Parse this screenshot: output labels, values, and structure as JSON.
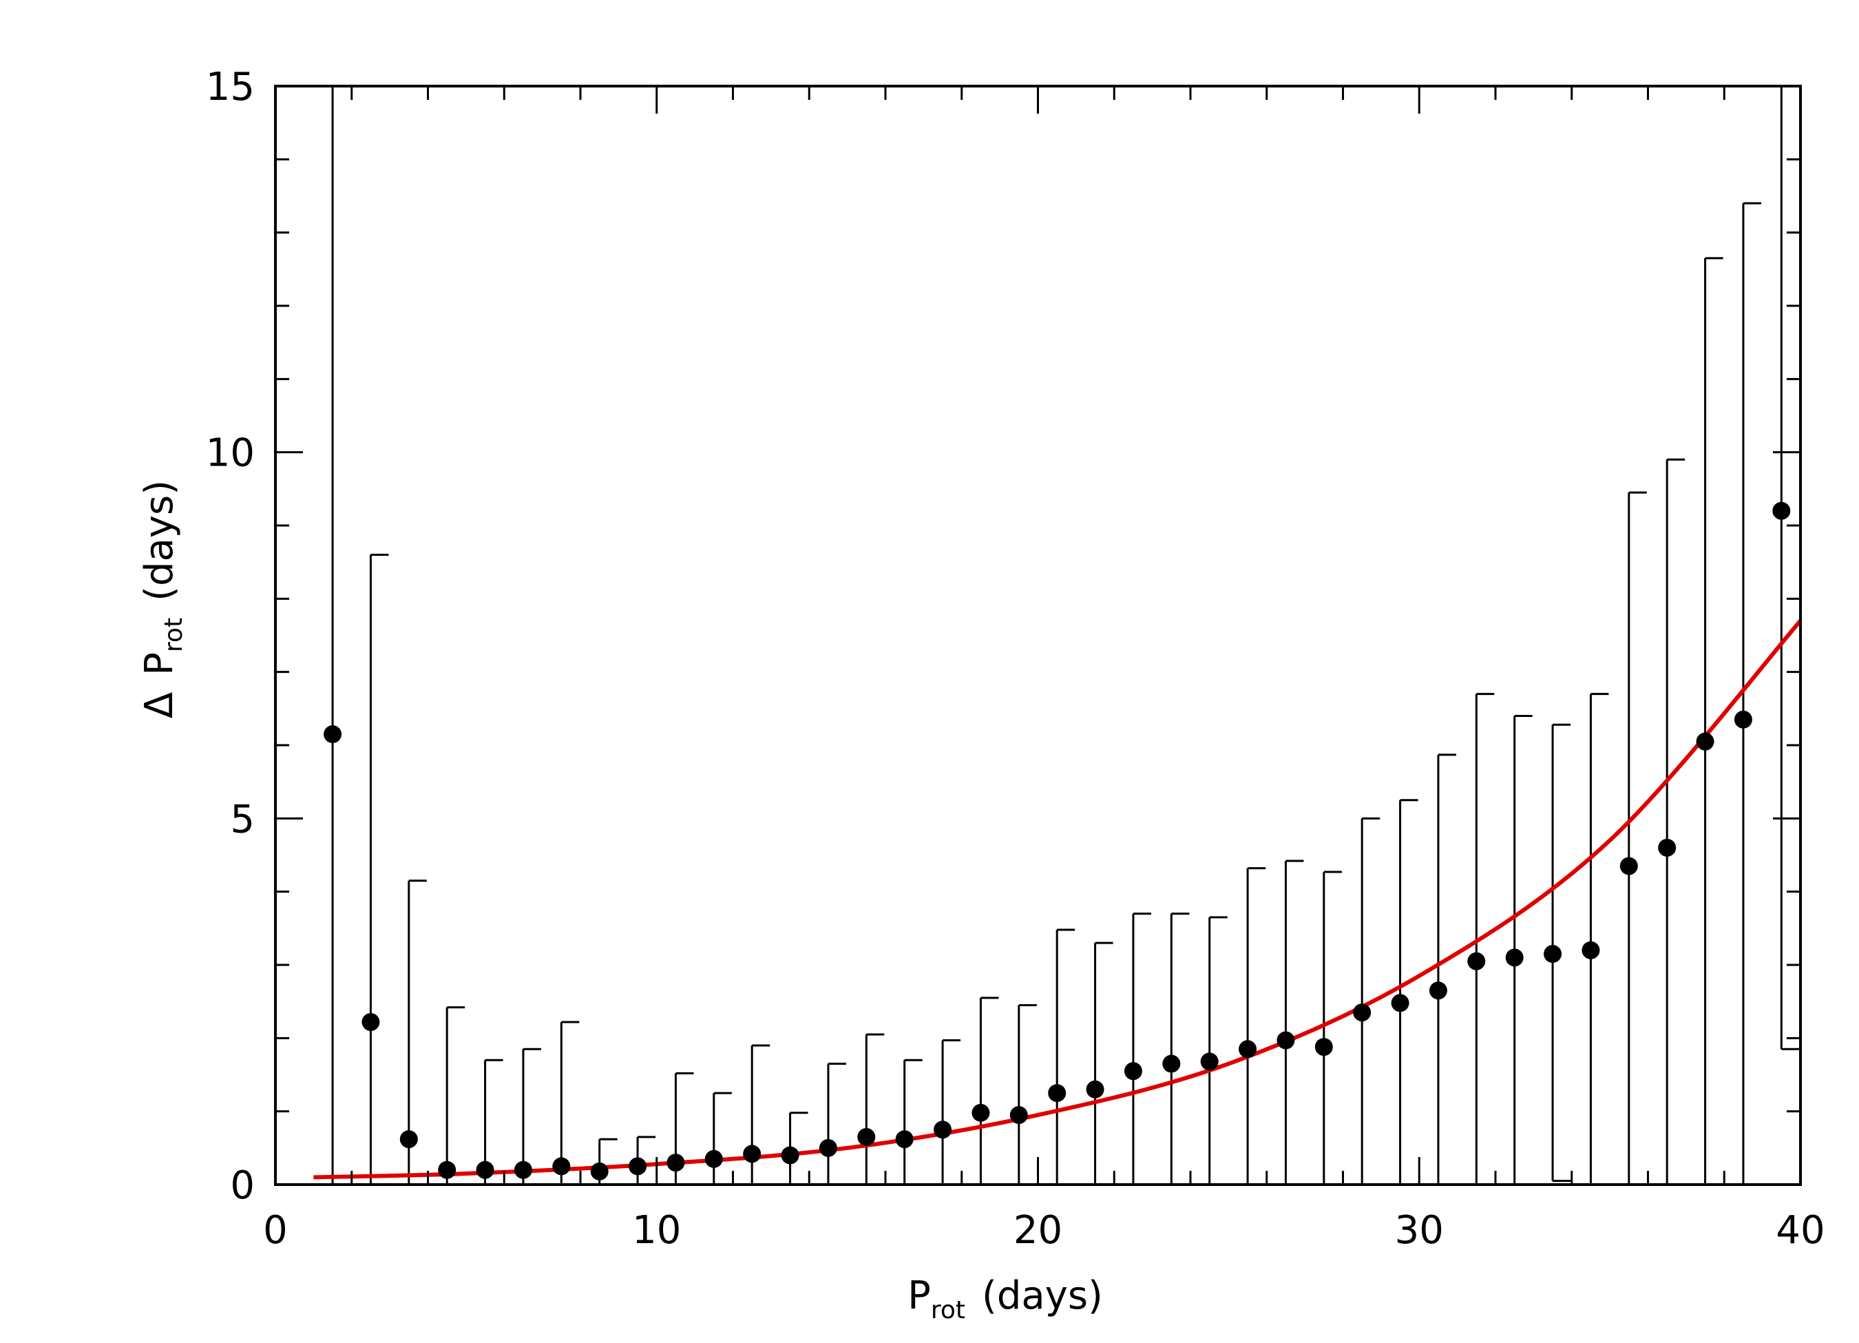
{
  "chart_data": {
    "type": "scatter",
    "title": "",
    "xlabel": {
      "main": "P",
      "sub": "rot",
      "rest": "(days)"
    },
    "ylabel": {
      "prefix": "Δ",
      "main": "P",
      "sub": "rot",
      "rest": "(days)"
    },
    "xlim": [
      0,
      40
    ],
    "ylim": [
      0,
      15
    ],
    "x_ticks": [
      0,
      10,
      20,
      30,
      40
    ],
    "x_tick_labels": [
      "0",
      "10",
      "20",
      "30",
      "40"
    ],
    "y_ticks": [
      0,
      5,
      10,
      15
    ],
    "y_tick_labels": [
      "0",
      "5",
      "10",
      "15"
    ],
    "grid": false,
    "colors": {
      "points": "#000000",
      "fit": "#e00000"
    },
    "series": [
      {
        "kind": "points_with_errorbars",
        "x": [
          1.5,
          2.5,
          3.5,
          4.5,
          5.5,
          6.5,
          7.5,
          8.5,
          9.5,
          10.5,
          11.5,
          12.5,
          13.5,
          14.5,
          15.5,
          16.5,
          17.5,
          18.5,
          19.5,
          20.5,
          21.5,
          22.5,
          23.5,
          24.5,
          25.5,
          26.5,
          27.5,
          28.5,
          29.5,
          30.5,
          31.5,
          32.5,
          33.5,
          34.5,
          35.5,
          36.5,
          37.5,
          38.5,
          39.5
        ],
        "y": [
          6.15,
          2.22,
          0.62,
          0.2,
          0.2,
          0.2,
          0.25,
          0.18,
          0.25,
          0.3,
          0.35,
          0.42,
          0.4,
          0.5,
          0.65,
          0.62,
          0.75,
          0.98,
          0.95,
          1.25,
          1.3,
          1.55,
          1.65,
          1.68,
          1.85,
          1.97,
          1.88,
          2.35,
          2.48,
          2.65,
          3.05,
          3.1,
          3.15,
          3.2,
          4.35,
          4.6,
          6.05,
          6.35,
          9.2
        ],
        "y_low": [
          0,
          0,
          0,
          0,
          0,
          0,
          0,
          0,
          0,
          0,
          0,
          0,
          0,
          0,
          0,
          0,
          0,
          0,
          0,
          0,
          0,
          0,
          0,
          0,
          0,
          0,
          0,
          0,
          0,
          0,
          0,
          0,
          0.05,
          0,
          0,
          0,
          0,
          0,
          1.85
        ],
        "y_high": [
          15,
          8.6,
          4.15,
          2.42,
          1.7,
          1.85,
          2.22,
          0.62,
          0.65,
          1.52,
          1.25,
          1.9,
          0.98,
          1.65,
          2.05,
          1.7,
          1.97,
          2.55,
          2.45,
          3.48,
          3.3,
          3.7,
          3.7,
          3.65,
          4.32,
          4.42,
          4.27,
          5.0,
          5.25,
          5.87,
          6.7,
          6.4,
          6.28,
          6.7,
          9.45,
          9.9,
          12.65,
          13.4,
          15
        ]
      },
      {
        "kind": "fit_curve",
        "x": [
          1,
          5,
          10,
          15,
          20,
          25,
          30,
          35,
          40
        ],
        "y": [
          0.1,
          0.15,
          0.28,
          0.5,
          0.95,
          1.65,
          2.85,
          4.7,
          7.7
        ]
      }
    ]
  }
}
